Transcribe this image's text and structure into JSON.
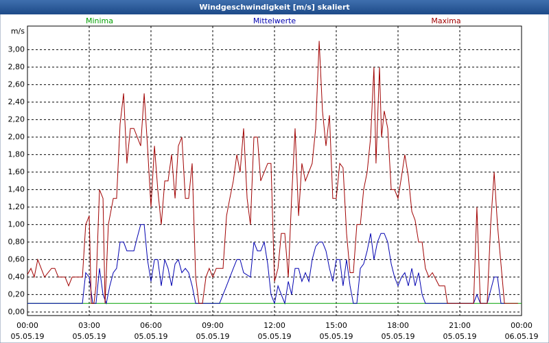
{
  "chart_data": {
    "type": "line",
    "title": "Windgeschwindigkeit [m/s] skaliert",
    "y_unit": "m/s",
    "xlim": [
      0,
      24
    ],
    "xticks": [
      {
        "value": 0,
        "label": "00:00"
      },
      {
        "value": 3,
        "label": "03:00"
      },
      {
        "value": 6,
        "label": "06:00"
      },
      {
        "value": 9,
        "label": "09:00"
      },
      {
        "value": 12,
        "label": "12:00"
      },
      {
        "value": 15,
        "label": "15:00"
      },
      {
        "value": 18,
        "label": "18:00"
      },
      {
        "value": 21,
        "label": "21:00"
      },
      {
        "value": 24,
        "label": "00:00"
      }
    ],
    "xtick_dates": [
      "05.05.19",
      "05.05.19",
      "05.05.19",
      "05.05.19",
      "05.05.19",
      "05.05.19",
      "05.05.19",
      "05.05.19",
      "06.05.19"
    ],
    "ylim": [
      -0.04,
      3.27
    ],
    "yticks": [
      {
        "value": 0,
        "label": "0,00"
      },
      {
        "value": 0.2,
        "label": "0,20"
      },
      {
        "value": 0.4,
        "label": "0,40"
      },
      {
        "value": 0.6,
        "label": "0,60"
      },
      {
        "value": 0.8,
        "label": "0,80"
      },
      {
        "value": 1,
        "label": "1,00"
      },
      {
        "value": 1.2,
        "label": "1,20"
      },
      {
        "value": 1.4,
        "label": "1,40"
      },
      {
        "value": 1.6,
        "label": "1,60"
      },
      {
        "value": 1.8,
        "label": "1,80"
      },
      {
        "value": 2,
        "label": "2,00"
      },
      {
        "value": 2.2,
        "label": "2,20"
      },
      {
        "value": 2.4,
        "label": "2,40"
      },
      {
        "value": 2.6,
        "label": "2,60"
      },
      {
        "value": 2.8,
        "label": "2,80"
      },
      {
        "value": 3,
        "label": "3,00"
      }
    ],
    "grid": true,
    "series": [
      {
        "name": "Minima",
        "color": "#00a000",
        "x": [
          0,
          24
        ],
        "values": [
          0.1,
          0.1
        ]
      },
      {
        "name": "Mittelwerte",
        "color": "#0000b0",
        "x": [
          0,
          2.67,
          2.83,
          3,
          3.17,
          3.33,
          3.5,
          3.67,
          3.83,
          4,
          4.17,
          4.33,
          4.5,
          4.67,
          4.83,
          5.17,
          5.33,
          5.5,
          5.67,
          5.83,
          6,
          6.17,
          6.33,
          6.5,
          6.67,
          6.83,
          7,
          7.17,
          7.33,
          7.5,
          7.67,
          7.83,
          8,
          8.17,
          9.33,
          9.67,
          10,
          10.17,
          10.33,
          10.5,
          10.83,
          11,
          11.17,
          11.33,
          11.5,
          11.67,
          11.83,
          12,
          12.17,
          12.33,
          12.5,
          12.67,
          12.83,
          13,
          13.17,
          13.33,
          13.5,
          13.67,
          13.83,
          14,
          14.17,
          14.33,
          14.5,
          14.67,
          14.83,
          15,
          15.17,
          15.33,
          15.5,
          15.67,
          15.83,
          16,
          16.17,
          16.33,
          16.5,
          16.67,
          16.83,
          17,
          17.17,
          17.33,
          17.5,
          17.67,
          17.83,
          18,
          18.17,
          18.33,
          18.5,
          18.67,
          18.83,
          19,
          19.17,
          19.33,
          21.67,
          21.83,
          22,
          22.33,
          22.67,
          22.83,
          23,
          23.17
        ],
        "values": [
          0.1,
          0.1,
          0.45,
          0.4,
          0.1,
          0.1,
          0.5,
          0.2,
          0.1,
          0.3,
          0.45,
          0.5,
          0.8,
          0.8,
          0.7,
          0.7,
          0.85,
          1.0,
          1.0,
          0.6,
          0.35,
          0.6,
          0.6,
          0.3,
          0.6,
          0.5,
          0.3,
          0.55,
          0.6,
          0.45,
          0.5,
          0.45,
          0.3,
          0.1,
          0.1,
          0.3,
          0.5,
          0.6,
          0.6,
          0.45,
          0.4,
          0.8,
          0.7,
          0.7,
          0.8,
          0.55,
          0.2,
          0.1,
          0.3,
          0.2,
          0.1,
          0.35,
          0.2,
          0.5,
          0.5,
          0.35,
          0.45,
          0.35,
          0.6,
          0.75,
          0.8,
          0.8,
          0.7,
          0.5,
          0.35,
          0.6,
          0.6,
          0.3,
          0.6,
          0.3,
          0.1,
          0.1,
          0.5,
          0.55,
          0.7,
          0.9,
          0.6,
          0.8,
          0.9,
          0.9,
          0.8,
          0.55,
          0.4,
          0.3,
          0.4,
          0.45,
          0.3,
          0.5,
          0.3,
          0.45,
          0.2,
          0.1,
          0.1,
          0.2,
          0.1,
          0.1,
          0.4,
          0.4,
          0.1,
          0.1
        ]
      },
      {
        "name": "Maxima",
        "color": "#a00000",
        "x": [
          0,
          0.17,
          0.33,
          0.5,
          0.83,
          1.17,
          1.33,
          1.5,
          1.83,
          2,
          2.17,
          2.67,
          2.83,
          3,
          3.1,
          3.23,
          3.33,
          3.5,
          3.67,
          3.77,
          3.93,
          4.17,
          4.33,
          4.5,
          4.67,
          4.83,
          5,
          5.17,
          5.5,
          5.67,
          5.83,
          6,
          6.17,
          6.33,
          6.5,
          6.67,
          6.83,
          7,
          7.17,
          7.33,
          7.5,
          7.67,
          7.83,
          8,
          8.17,
          8.33,
          8.5,
          8.67,
          8.83,
          9,
          9.17,
          9.5,
          9.67,
          9.83,
          10,
          10.17,
          10.33,
          10.5,
          10.67,
          10.83,
          11,
          11.17,
          11.33,
          11.67,
          11.83,
          12,
          12.17,
          12.33,
          12.5,
          12.67,
          12.83,
          13,
          13.17,
          13.33,
          13.5,
          13.83,
          14,
          14.17,
          14.33,
          14.5,
          14.67,
          14.83,
          15,
          15.17,
          15.33,
          15.5,
          15.67,
          15.83,
          16,
          16.17,
          16.33,
          16.5,
          16.67,
          16.83,
          16.93,
          17.1,
          17.2,
          17.33,
          17.5,
          17.67,
          17.83,
          18,
          18.17,
          18.33,
          18.5,
          18.67,
          18.83,
          19,
          19.17,
          19.33,
          19.5,
          19.67,
          20,
          20.27,
          20.4,
          21.67,
          21.83,
          22,
          22.33,
          22.5,
          22.67,
          22.83,
          23.17,
          23.83
        ],
        "values": [
          0.43,
          0.5,
          0.4,
          0.6,
          0.4,
          0.5,
          0.5,
          0.4,
          0.4,
          0.3,
          0.4,
          0.4,
          1.0,
          1.1,
          0.1,
          0.1,
          0.3,
          1.4,
          1.3,
          0.1,
          1.0,
          1.3,
          1.3,
          2.15,
          2.5,
          1.7,
          2.1,
          2.1,
          1.9,
          2.5,
          1.9,
          1.2,
          1.9,
          1.4,
          1.0,
          1.5,
          1.5,
          1.8,
          1.3,
          1.9,
          2.0,
          1.3,
          1.3,
          1.7,
          0.4,
          0.1,
          0.1,
          0.4,
          0.5,
          0.4,
          0.5,
          0.5,
          1.1,
          1.3,
          1.5,
          1.8,
          1.6,
          2.1,
          1.3,
          1.0,
          2.0,
          2.0,
          1.5,
          1.7,
          1.7,
          0.35,
          0.5,
          0.9,
          0.9,
          0.4,
          1.3,
          2.1,
          1.1,
          1.7,
          1.5,
          1.7,
          2.1,
          3.1,
          2.3,
          1.9,
          2.25,
          1.3,
          1.3,
          1.7,
          1.65,
          0.9,
          0.45,
          0.45,
          1.0,
          1.0,
          1.4,
          1.6,
          2.0,
          2.8,
          1.7,
          2.8,
          2.0,
          2.3,
          2.1,
          1.4,
          1.4,
          1.3,
          1.55,
          1.8,
          1.55,
          1.15,
          1.05,
          0.8,
          0.8,
          0.5,
          0.4,
          0.45,
          0.3,
          0.3,
          0.1,
          0.1,
          1.2,
          0.1,
          0.1,
          1.0,
          1.6,
          1.0,
          0.1,
          0.1
        ]
      }
    ]
  }
}
